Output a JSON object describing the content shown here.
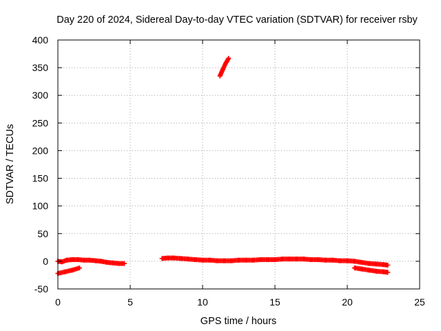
{
  "chart_data": {
    "type": "scatter",
    "title": "Day 220 of 2024, Sidereal Day-to-day VTEC variation (SDTVAR) for receiver rsby",
    "xlabel": "GPS time / hours",
    "ylabel": "SDTVAR / TECUs",
    "xlim": [
      0,
      25
    ],
    "ylim": [
      -50,
      400
    ],
    "xticks": [
      "0",
      "5",
      "10",
      "15",
      "20",
      "25"
    ],
    "yticks": [
      "-50",
      "0",
      "50",
      "100",
      "150",
      "200",
      "250",
      "300",
      "350",
      "400"
    ],
    "grid": true,
    "marker": "plus",
    "color": "#ff0000",
    "series": [
      {
        "x": [
          0.0,
          0.3,
          0.6,
          1.0,
          1.4,
          1.8,
          2.2,
          2.6,
          3.0,
          3.4,
          3.8,
          4.2,
          4.6
        ],
        "y": [
          0,
          -1,
          2,
          3,
          3,
          2,
          2,
          1,
          0,
          -2,
          -3,
          -4,
          -4
        ]
      },
      {
        "x": [
          0.0,
          0.5,
          1.0,
          1.5
        ],
        "y": [
          -22,
          -19,
          -16,
          -12
        ]
      },
      {
        "x": [
          11.2,
          11.4,
          11.6,
          11.8
        ],
        "y": [
          335,
          347,
          358,
          367
        ]
      },
      {
        "x": [
          7.2,
          7.6,
          8.0,
          8.5,
          9.0,
          9.5,
          10.0,
          10.5,
          11.0,
          11.5,
          12.0,
          12.5,
          13.0,
          13.5,
          14.0,
          14.5,
          15.0,
          15.5,
          16.0,
          16.5,
          17.0,
          17.5,
          18.0,
          18.5,
          19.0,
          19.5,
          20.0,
          20.5,
          21.0,
          21.5,
          22.0,
          22.5,
          22.8
        ],
        "y": [
          5,
          6,
          6,
          5,
          4,
          3,
          2,
          2,
          1,
          1,
          1,
          2,
          2,
          2,
          3,
          3,
          3,
          4,
          4,
          4,
          4,
          3,
          3,
          2,
          2,
          1,
          1,
          0,
          -2,
          -4,
          -5,
          -6,
          -7
        ]
      },
      {
        "x": [
          20.5,
          21.0,
          21.5,
          22.0,
          22.5,
          22.8
        ],
        "y": [
          -12,
          -14,
          -16,
          -18,
          -19,
          -20
        ]
      }
    ]
  }
}
